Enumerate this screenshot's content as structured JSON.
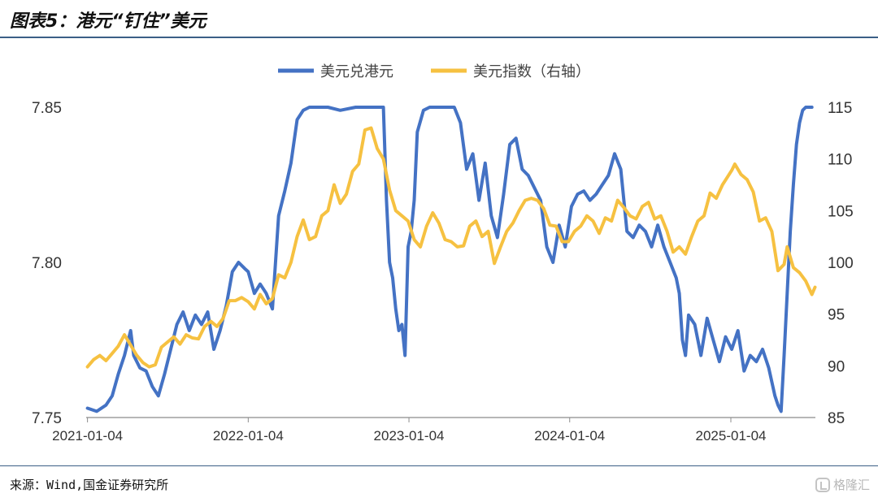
{
  "figure": {
    "title": "图表5：港元“钉住”美元",
    "source": "来源：Wind,国金证券研究所",
    "watermark": "格隆汇"
  },
  "colors": {
    "series1": "#4472c4",
    "series2": "#f6c141",
    "axis": "#8c8c8c",
    "rule": "#3b5f86"
  },
  "chart_data": {
    "type": "line",
    "title": "",
    "legend_position": "top-center",
    "grid": false,
    "x_ticks": [
      "2021-01-04",
      "2022-01-04",
      "2023-01-04",
      "2024-01-04",
      "2025-01-04"
    ],
    "x_range": [
      "2021-01-01",
      "2025-07-15"
    ],
    "y_left": {
      "range": [
        7.75,
        7.85
      ],
      "ticks": [
        "7.75",
        "7.80",
        "7.85"
      ]
    },
    "y_right": {
      "range": [
        85,
        115
      ],
      "ticks": [
        "85",
        "90",
        "95",
        "100",
        "105",
        "110",
        "115"
      ]
    },
    "series": [
      {
        "name": "美元兑港元",
        "axis": "left",
        "points": [
          [
            "2021-01-04",
            7.753
          ],
          [
            "2021-01-25",
            7.752
          ],
          [
            "2021-02-15",
            7.754
          ],
          [
            "2021-03-01",
            7.757
          ],
          [
            "2021-03-15",
            7.764
          ],
          [
            "2021-03-29",
            7.77
          ],
          [
            "2021-04-12",
            7.778
          ],
          [
            "2021-04-19",
            7.77
          ],
          [
            "2021-05-03",
            7.766
          ],
          [
            "2021-05-17",
            7.765
          ],
          [
            "2021-05-31",
            7.76
          ],
          [
            "2021-06-14",
            7.757
          ],
          [
            "2021-06-28",
            7.764
          ],
          [
            "2021-07-12",
            7.772
          ],
          [
            "2021-07-26",
            7.78
          ],
          [
            "2021-08-09",
            7.784
          ],
          [
            "2021-08-23",
            7.778
          ],
          [
            "2021-09-06",
            7.783
          ],
          [
            "2021-09-20",
            7.78
          ],
          [
            "2021-10-04",
            7.784
          ],
          [
            "2021-10-18",
            7.772
          ],
          [
            "2021-11-01",
            7.778
          ],
          [
            "2021-11-15",
            7.786
          ],
          [
            "2021-11-29",
            7.797
          ],
          [
            "2021-12-13",
            7.8
          ],
          [
            "2021-12-27",
            7.798
          ],
          [
            "2022-01-04",
            7.797
          ],
          [
            "2022-01-18",
            7.79
          ],
          [
            "2022-01-31",
            7.793
          ],
          [
            "2022-02-14",
            7.79
          ],
          [
            "2022-02-28",
            7.785
          ],
          [
            "2022-03-14",
            7.815
          ],
          [
            "2022-03-28",
            7.823
          ],
          [
            "2022-04-11",
            7.832
          ],
          [
            "2022-04-25",
            7.846
          ],
          [
            "2022-05-09",
            7.849
          ],
          [
            "2022-05-23",
            7.85
          ],
          [
            "2022-06-06",
            7.85
          ],
          [
            "2022-07-04",
            7.85
          ],
          [
            "2022-08-01",
            7.849
          ],
          [
            "2022-09-05",
            7.85
          ],
          [
            "2022-10-03",
            7.85
          ],
          [
            "2022-11-07",
            7.85
          ],
          [
            "2022-11-14",
            7.82
          ],
          [
            "2022-11-21",
            7.8
          ],
          [
            "2022-11-28",
            7.795
          ],
          [
            "2022-12-05",
            7.785
          ],
          [
            "2022-12-12",
            7.778
          ],
          [
            "2022-12-19",
            7.78
          ],
          [
            "2022-12-26",
            7.77
          ],
          [
            "2023-01-02",
            7.805
          ],
          [
            "2023-01-09",
            7.81
          ],
          [
            "2023-01-16",
            7.82
          ],
          [
            "2023-01-23",
            7.842
          ],
          [
            "2023-02-06",
            7.849
          ],
          [
            "2023-02-20",
            7.85
          ],
          [
            "2023-03-20",
            7.85
          ],
          [
            "2023-04-17",
            7.85
          ],
          [
            "2023-05-01",
            7.845
          ],
          [
            "2023-05-15",
            7.83
          ],
          [
            "2023-05-29",
            7.835
          ],
          [
            "2023-06-12",
            7.82
          ],
          [
            "2023-06-26",
            7.832
          ],
          [
            "2023-07-10",
            7.815
          ],
          [
            "2023-07-24",
            7.808
          ],
          [
            "2023-08-07",
            7.822
          ],
          [
            "2023-08-21",
            7.838
          ],
          [
            "2023-09-04",
            7.84
          ],
          [
            "2023-09-18",
            7.83
          ],
          [
            "2023-10-02",
            7.828
          ],
          [
            "2023-10-16",
            7.824
          ],
          [
            "2023-10-30",
            7.82
          ],
          [
            "2023-11-13",
            7.805
          ],
          [
            "2023-11-27",
            7.8
          ],
          [
            "2023-12-11",
            7.812
          ],
          [
            "2023-12-25",
            7.805
          ],
          [
            "2024-01-08",
            7.818
          ],
          [
            "2024-01-22",
            7.822
          ],
          [
            "2024-02-05",
            7.823
          ],
          [
            "2024-02-19",
            7.82
          ],
          [
            "2024-03-04",
            7.822
          ],
          [
            "2024-03-18",
            7.825
          ],
          [
            "2024-04-01",
            7.828
          ],
          [
            "2024-04-15",
            7.835
          ],
          [
            "2024-04-29",
            7.83
          ],
          [
            "2024-05-13",
            7.81
          ],
          [
            "2024-05-27",
            7.808
          ],
          [
            "2024-06-10",
            7.812
          ],
          [
            "2024-06-24",
            7.81
          ],
          [
            "2024-07-08",
            7.805
          ],
          [
            "2024-07-22",
            7.812
          ],
          [
            "2024-08-05",
            7.805
          ],
          [
            "2024-08-19",
            7.8
          ],
          [
            "2024-09-02",
            7.795
          ],
          [
            "2024-09-09",
            7.79
          ],
          [
            "2024-09-16",
            7.775
          ],
          [
            "2024-09-23",
            7.77
          ],
          [
            "2024-09-30",
            7.783
          ],
          [
            "2024-10-14",
            7.78
          ],
          [
            "2024-10-28",
            7.77
          ],
          [
            "2024-11-11",
            7.782
          ],
          [
            "2024-11-25",
            7.775
          ],
          [
            "2024-12-09",
            7.768
          ],
          [
            "2024-12-23",
            7.776
          ],
          [
            "2025-01-06",
            7.772
          ],
          [
            "2025-01-20",
            7.778
          ],
          [
            "2025-02-03",
            7.765
          ],
          [
            "2025-02-17",
            7.77
          ],
          [
            "2025-03-03",
            7.768
          ],
          [
            "2025-03-17",
            7.772
          ],
          [
            "2025-03-31",
            7.766
          ],
          [
            "2025-04-14",
            7.757
          ],
          [
            "2025-04-21",
            7.754
          ],
          [
            "2025-04-28",
            7.752
          ],
          [
            "2025-05-05",
            7.77
          ],
          [
            "2025-05-12",
            7.79
          ],
          [
            "2025-05-19",
            7.81
          ],
          [
            "2025-05-26",
            7.825
          ],
          [
            "2025-06-02",
            7.838
          ],
          [
            "2025-06-09",
            7.845
          ],
          [
            "2025-06-16",
            7.849
          ],
          [
            "2025-06-23",
            7.85
          ],
          [
            "2025-07-07",
            7.85
          ]
        ]
      },
      {
        "name": "美元指数（右轴）",
        "axis": "right",
        "points": [
          [
            "2021-01-04",
            89.9
          ],
          [
            "2021-01-18",
            90.6
          ],
          [
            "2021-02-01",
            91.0
          ],
          [
            "2021-02-15",
            90.5
          ],
          [
            "2021-03-01",
            91.2
          ],
          [
            "2021-03-15",
            91.9
          ],
          [
            "2021-03-29",
            93.0
          ],
          [
            "2021-04-12",
            92.0
          ],
          [
            "2021-04-26",
            91.0
          ],
          [
            "2021-05-10",
            90.3
          ],
          [
            "2021-05-24",
            89.9
          ],
          [
            "2021-06-07",
            90.1
          ],
          [
            "2021-06-21",
            91.8
          ],
          [
            "2021-07-05",
            92.3
          ],
          [
            "2021-07-19",
            92.8
          ],
          [
            "2021-08-02",
            92.1
          ],
          [
            "2021-08-16",
            93.0
          ],
          [
            "2021-08-30",
            92.7
          ],
          [
            "2021-09-13",
            92.6
          ],
          [
            "2021-09-27",
            93.8
          ],
          [
            "2021-10-11",
            94.3
          ],
          [
            "2021-10-25",
            93.8
          ],
          [
            "2021-11-08",
            94.6
          ],
          [
            "2021-11-22",
            96.3
          ],
          [
            "2021-12-06",
            96.3
          ],
          [
            "2021-12-20",
            96.6
          ],
          [
            "2022-01-04",
            96.2
          ],
          [
            "2022-01-18",
            95.5
          ],
          [
            "2022-01-31",
            96.9
          ],
          [
            "2022-02-14",
            96.0
          ],
          [
            "2022-02-28",
            96.5
          ],
          [
            "2022-03-14",
            98.8
          ],
          [
            "2022-03-28",
            98.5
          ],
          [
            "2022-04-11",
            100.0
          ],
          [
            "2022-04-25",
            102.5
          ],
          [
            "2022-05-09",
            104.1
          ],
          [
            "2022-05-23",
            102.2
          ],
          [
            "2022-06-06",
            102.5
          ],
          [
            "2022-06-20",
            104.5
          ],
          [
            "2022-07-04",
            105.0
          ],
          [
            "2022-07-18",
            107.5
          ],
          [
            "2022-08-01",
            105.7
          ],
          [
            "2022-08-15",
            106.6
          ],
          [
            "2022-08-29",
            108.8
          ],
          [
            "2022-09-12",
            109.5
          ],
          [
            "2022-09-26",
            112.8
          ],
          [
            "2022-10-10",
            113.0
          ],
          [
            "2022-10-24",
            111.0
          ],
          [
            "2022-11-07",
            110.0
          ],
          [
            "2022-11-21",
            107.0
          ],
          [
            "2022-12-05",
            105.0
          ],
          [
            "2022-12-19",
            104.5
          ],
          [
            "2023-01-02",
            104.0
          ],
          [
            "2023-01-16",
            102.2
          ],
          [
            "2023-01-30",
            101.5
          ],
          [
            "2023-02-13",
            103.5
          ],
          [
            "2023-02-27",
            104.8
          ],
          [
            "2023-03-13",
            103.8
          ],
          [
            "2023-03-27",
            102.2
          ],
          [
            "2023-04-10",
            102.0
          ],
          [
            "2023-04-24",
            101.5
          ],
          [
            "2023-05-08",
            101.6
          ],
          [
            "2023-05-22",
            103.5
          ],
          [
            "2023-06-05",
            104.0
          ],
          [
            "2023-06-19",
            102.5
          ],
          [
            "2023-07-03",
            103.0
          ],
          [
            "2023-07-17",
            99.9
          ],
          [
            "2023-07-31",
            101.5
          ],
          [
            "2023-08-14",
            103.0
          ],
          [
            "2023-08-28",
            103.8
          ],
          [
            "2023-09-11",
            105.0
          ],
          [
            "2023-09-25",
            106.0
          ],
          [
            "2023-10-09",
            106.2
          ],
          [
            "2023-10-23",
            106.0
          ],
          [
            "2023-11-06",
            105.2
          ],
          [
            "2023-11-20",
            103.6
          ],
          [
            "2023-12-04",
            103.5
          ],
          [
            "2023-12-18",
            102.0
          ],
          [
            "2024-01-01",
            102.0
          ],
          [
            "2024-01-15",
            103.0
          ],
          [
            "2024-01-29",
            103.5
          ],
          [
            "2024-02-12",
            104.5
          ],
          [
            "2024-02-26",
            104.0
          ],
          [
            "2024-03-11",
            102.8
          ],
          [
            "2024-03-25",
            104.3
          ],
          [
            "2024-04-08",
            104.0
          ],
          [
            "2024-04-22",
            106.0
          ],
          [
            "2024-05-06",
            105.3
          ],
          [
            "2024-05-20",
            104.5
          ],
          [
            "2024-06-03",
            104.2
          ],
          [
            "2024-06-17",
            105.4
          ],
          [
            "2024-07-01",
            105.8
          ],
          [
            "2024-07-15",
            104.2
          ],
          [
            "2024-07-29",
            104.5
          ],
          [
            "2024-08-12",
            103.0
          ],
          [
            "2024-08-26",
            101.0
          ],
          [
            "2024-09-09",
            101.5
          ],
          [
            "2024-09-23",
            100.8
          ],
          [
            "2024-10-07",
            102.5
          ],
          [
            "2024-10-21",
            104.0
          ],
          [
            "2024-11-04",
            104.5
          ],
          [
            "2024-11-18",
            106.7
          ],
          [
            "2024-12-02",
            106.2
          ],
          [
            "2024-12-16",
            107.5
          ],
          [
            "2025-01-06",
            108.9
          ],
          [
            "2025-01-13",
            109.5
          ],
          [
            "2025-01-27",
            108.5
          ],
          [
            "2025-02-10",
            108.0
          ],
          [
            "2025-02-24",
            106.8
          ],
          [
            "2025-03-10",
            104.0
          ],
          [
            "2025-03-24",
            104.3
          ],
          [
            "2025-04-07",
            103.0
          ],
          [
            "2025-04-21",
            99.2
          ],
          [
            "2025-05-05",
            99.8
          ],
          [
            "2025-05-12",
            101.5
          ],
          [
            "2025-05-26",
            99.5
          ],
          [
            "2025-06-09",
            99.0
          ],
          [
            "2025-06-23",
            98.2
          ],
          [
            "2025-07-07",
            96.9
          ],
          [
            "2025-07-14",
            97.6
          ]
        ]
      }
    ]
  }
}
